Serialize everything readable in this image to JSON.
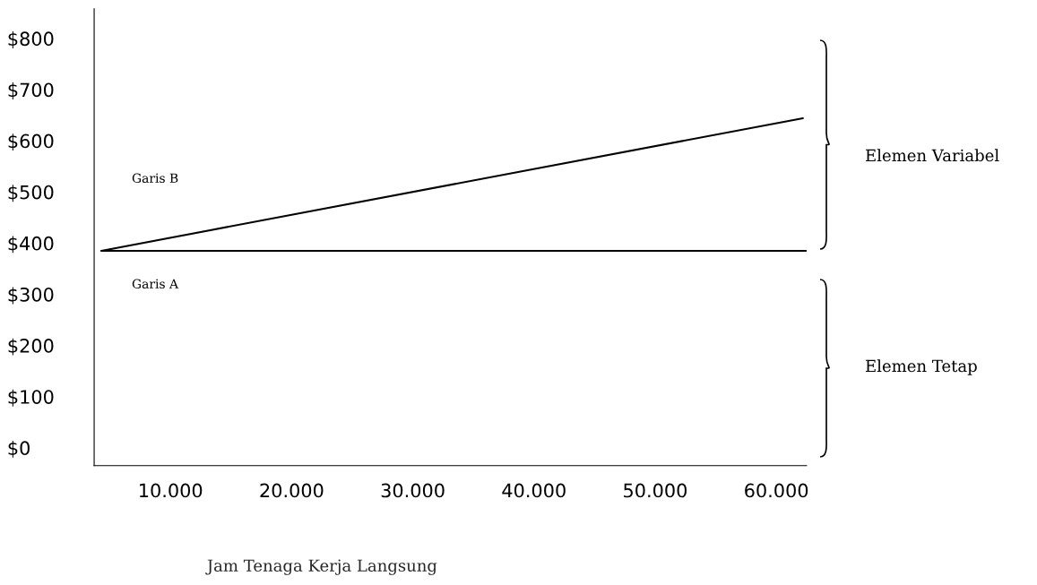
{
  "chart_data": {
    "type": "line",
    "xlabel": "Jam Tenaga Kerja Langsung",
    "series": [
      {
        "color": "#000000",
        "x": [
          4300,
          62500
        ],
        "values": [
          385,
          385
        ]
      },
      {
        "color": "#000000",
        "x": [
          4300,
          62200
        ],
        "values": [
          385,
          644
        ]
      }
    ],
    "annotations": [
      "Garis B",
      "Garis A",
      "Elemen Variabel",
      "Elemen Tetap"
    ],
    "xlim": [
      3700,
      62500
    ],
    "xticks": [
      {
        "value": 10000,
        "label": "10.000"
      },
      {
        "value": 20000,
        "label": "20.000"
      },
      {
        "value": 30000,
        "label": "30.000"
      },
      {
        "value": 40000,
        "label": "40.000"
      },
      {
        "value": 50000,
        "label": "50.000"
      },
      {
        "value": 60000,
        "label": "60.000"
      }
    ],
    "ylim": [
      -35,
      858
    ],
    "yticks": [
      {
        "value": 0,
        "label": "$0"
      },
      {
        "value": 100,
        "label": "$100"
      },
      {
        "value": 200,
        "label": "$200"
      },
      {
        "value": 300,
        "label": "$300"
      },
      {
        "value": 400,
        "label": "$400"
      },
      {
        "value": 500,
        "label": "$500"
      },
      {
        "value": 600,
        "label": "$600"
      },
      {
        "value": 700,
        "label": "$700"
      },
      {
        "value": 800,
        "label": "$800"
      }
    ],
    "grid": false,
    "legend": false,
    "line_style": "solid",
    "marker": "none"
  }
}
